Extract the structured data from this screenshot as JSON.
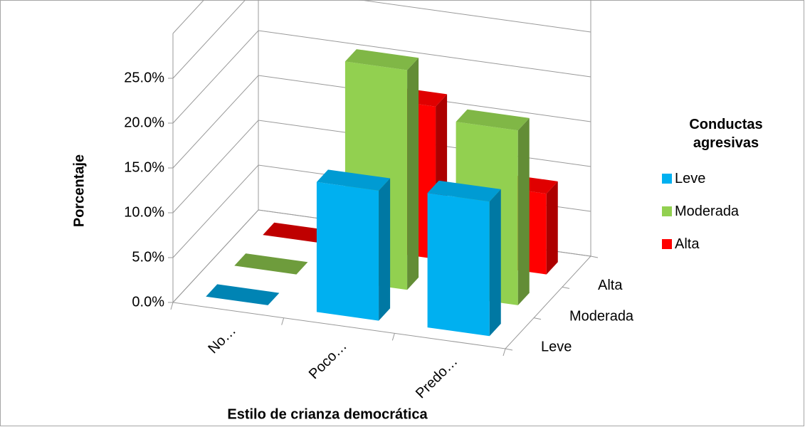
{
  "chart_data": {
    "type": "bar3d",
    "x_label": "Estilo de crianza democrática",
    "y_label": "Porcentaje",
    "legend_title": "Conductas agresivas",
    "categories": [
      "No…",
      "Poco…",
      "Predo…"
    ],
    "series": [
      {
        "name": "Leve",
        "color": "#00b0f0",
        "values": [
          0,
          14.5,
          15.0
        ]
      },
      {
        "name": "Moderada",
        "color": "#92d050",
        "values": [
          0,
          24.5,
          19.5
        ]
      },
      {
        "name": "Alta",
        "color": "#ff0000",
        "values": [
          0,
          17.0,
          9.0
        ]
      }
    ],
    "ylim": [
      0,
      30
    ],
    "yticks": [
      {
        "value": 0,
        "label": "0.0%"
      },
      {
        "value": 5,
        "label": "5.0%"
      },
      {
        "value": 10,
        "label": "10.0%"
      },
      {
        "value": 15,
        "label": "15.0%"
      },
      {
        "value": 20,
        "label": "20.0%"
      },
      {
        "value": 25,
        "label": "25.0%"
      }
    ],
    "grid": true,
    "legend": "right"
  }
}
